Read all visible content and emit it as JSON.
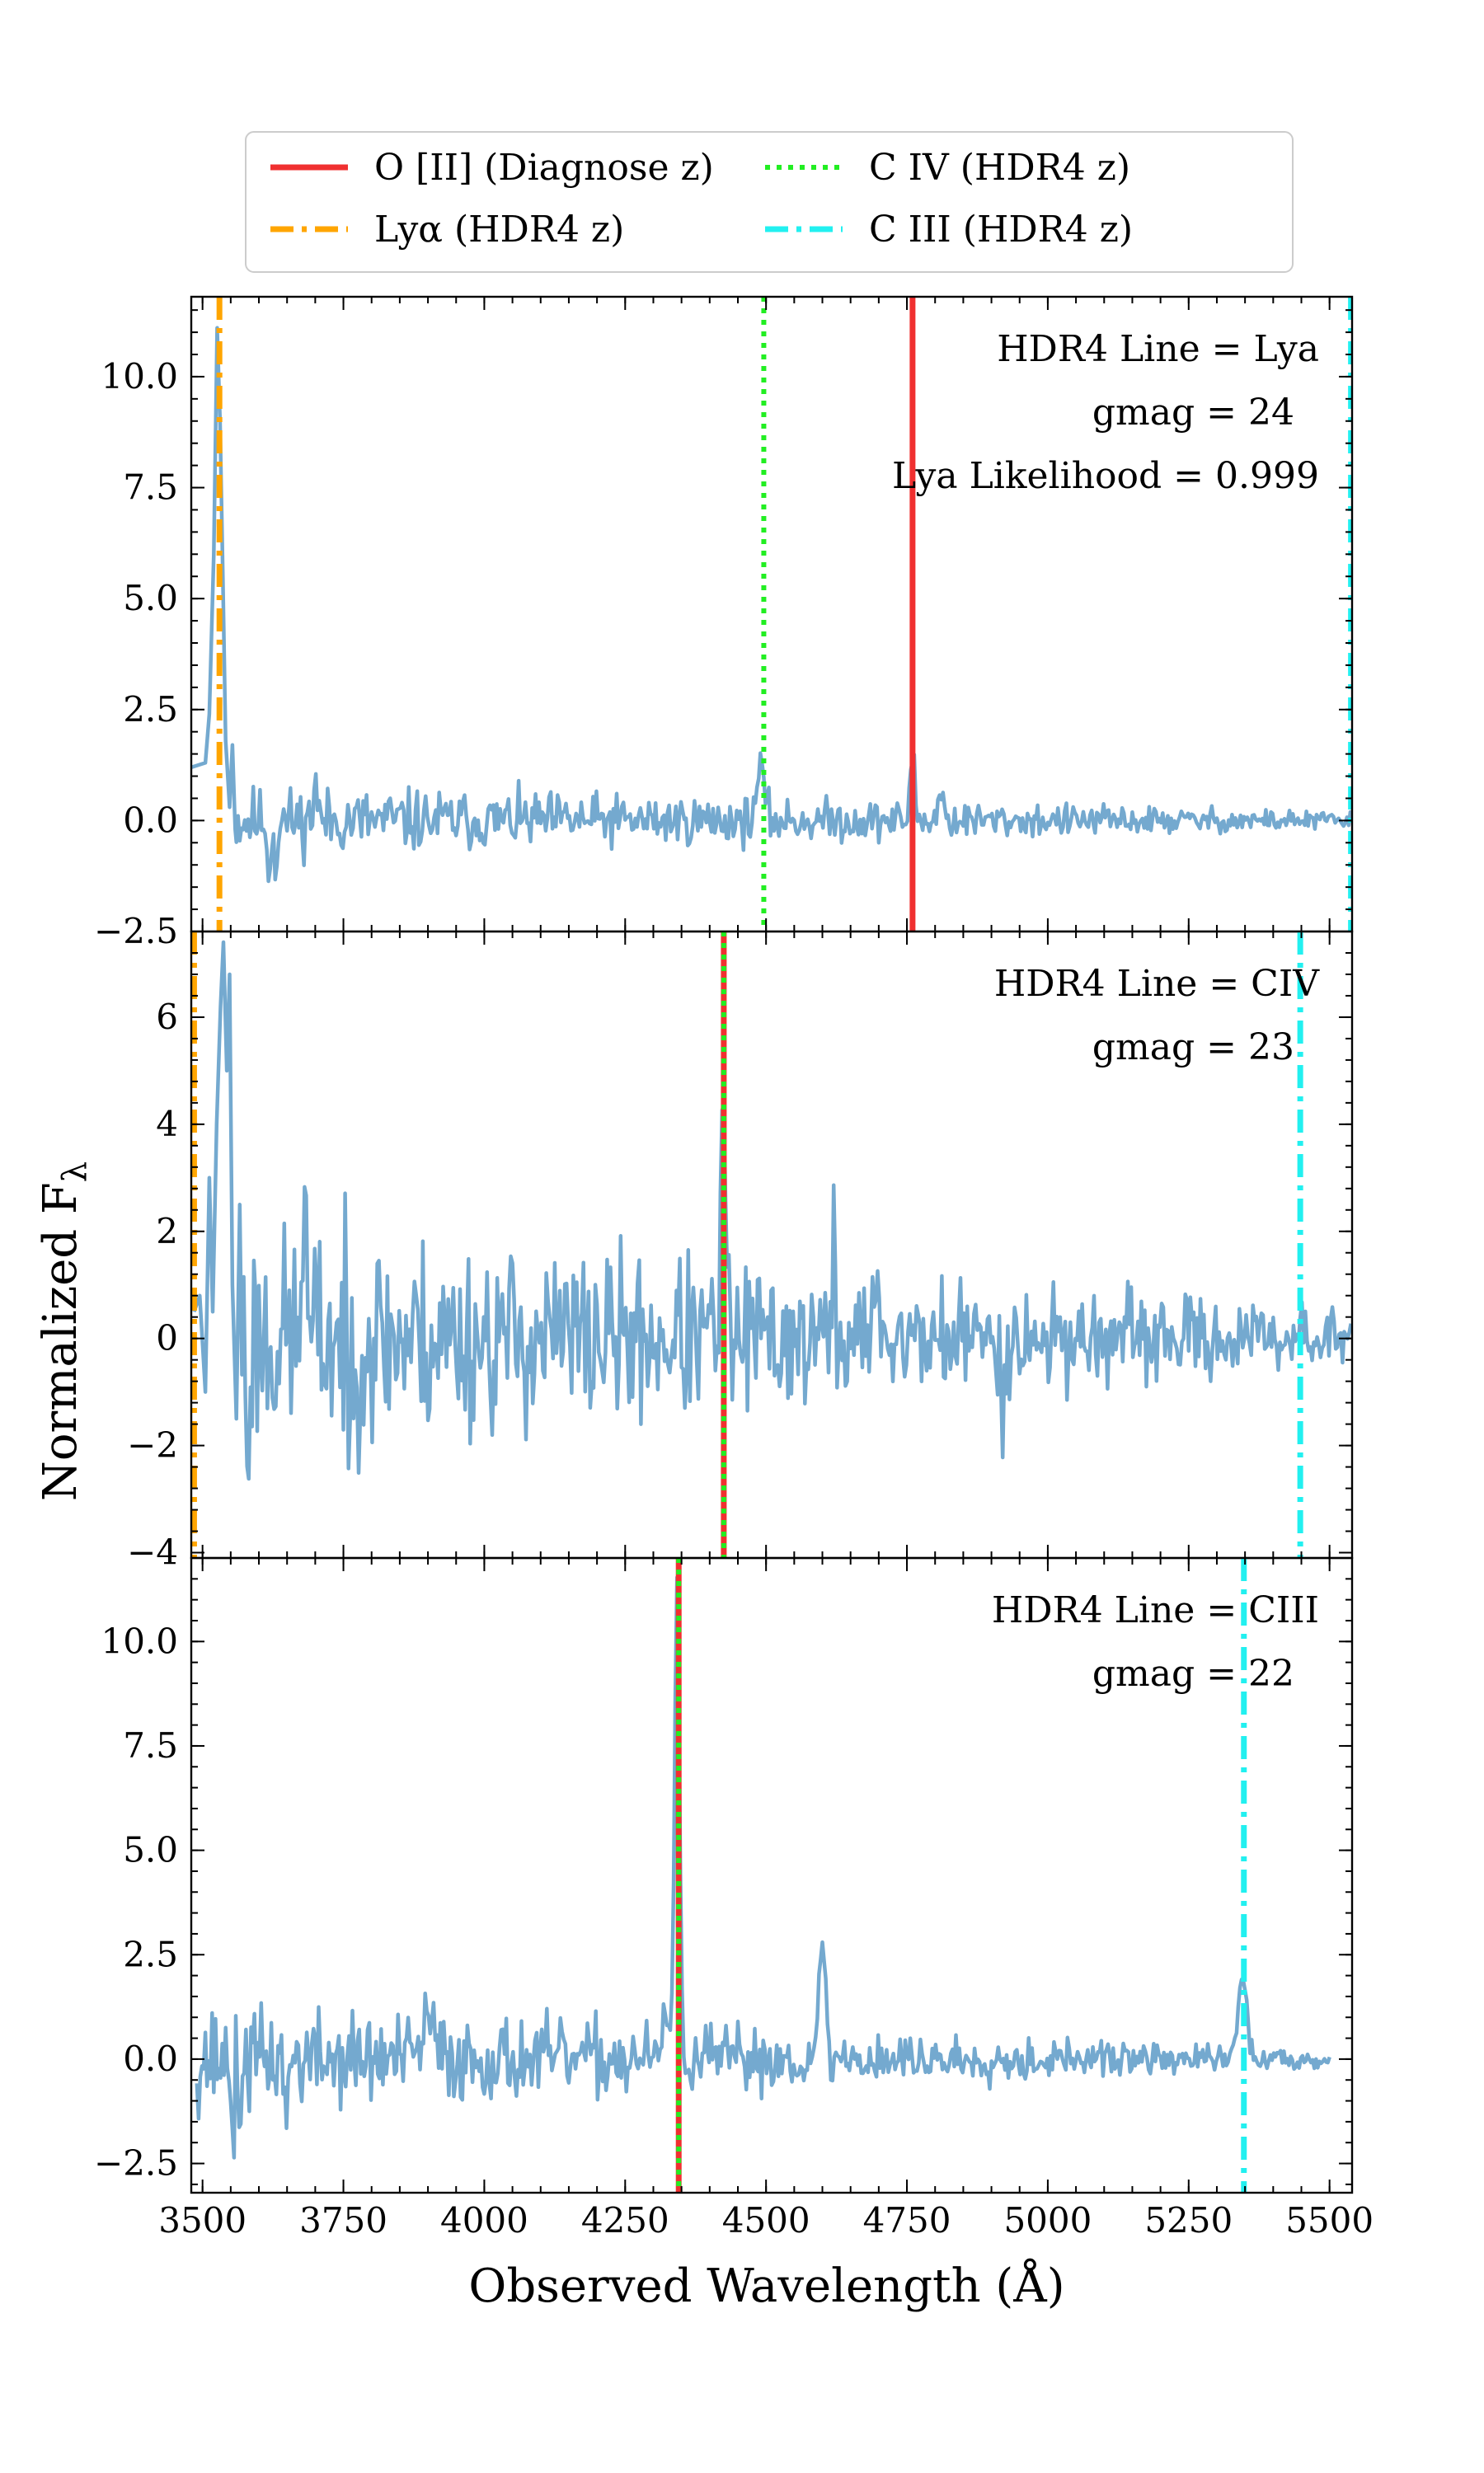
{
  "chart_data": {
    "type": "line",
    "xlabel": "Observed Wavelength (Å)",
    "ylabel": "Normalized F",
    "ylabel_sub": "λ",
    "xlim": [
      3480,
      5540
    ],
    "xticks": [
      3500,
      3750,
      4000,
      4250,
      4500,
      4750,
      5000,
      5250,
      5500
    ],
    "spectrum_color": "#74a9cf",
    "legend": {
      "placement": "top-center",
      "entries": [
        {
          "label": "O [II] (Diagnose z)",
          "color": "#f03030",
          "style": "solid"
        },
        {
          "label": "C IV (HDR4 z)",
          "color": "#22ee22",
          "style": "dotted"
        },
        {
          "label": "Lyα (HDR4 z)",
          "color": "#ffa500",
          "style": "dashdot"
        },
        {
          "label": "C III (HDR4 z)",
          "color": "#22f0f0",
          "style": "dashdot"
        }
      ]
    },
    "panels": [
      {
        "annotations": [
          "HDR4 Line = Lya",
          "gmag = 24",
          "Lya Likelihood = 0.999"
        ],
        "ylim": [
          -2.5,
          11.8
        ],
        "yticks": [
          -2.5,
          0.0,
          2.5,
          5.0,
          7.5,
          10.0
        ],
        "ytick_labels": [
          "−2.5",
          "0.0",
          "2.5",
          "5.0",
          "7.5",
          "10.0"
        ],
        "vlines": [
          {
            "x": 3530,
            "color": "#ffa500",
            "style": "dashdot"
          },
          {
            "x": 4496,
            "color": "#22ee22",
            "style": "dotted"
          },
          {
            "x": 4760,
            "color": "#f03030",
            "style": "solid"
          },
          {
            "x": 5538,
            "color": "#22f0f0",
            "style": "dashdot"
          }
        ],
        "spectrum": {
          "noise_start": 3560,
          "noise_end": 5540,
          "amp_start": 0.55,
          "amp_end": 0.15,
          "seed": 11,
          "pre": [
            [
              3480,
              1.2
            ],
            [
              3505,
              1.3
            ],
            [
              3512,
              2.4
            ],
            [
              3520,
              6.0
            ],
            [
              3526,
              11.1
            ],
            [
              3531,
              9.0
            ],
            [
              3536,
              5.5
            ],
            [
              3541,
              1.8
            ],
            [
              3548,
              0.3
            ],
            [
              3553,
              1.7
            ],
            [
              3558,
              -0.2
            ]
          ],
          "peaks": [
            [
              4490,
              1.1,
              7
            ],
            [
              4760,
              1.5,
              4
            ],
            [
              4810,
              0.6,
              5
            ],
            [
              3700,
              1.0,
              3
            ],
            [
              3618,
              -1.7,
              2
            ],
            [
              3630,
              -1.3,
              2
            ]
          ]
        }
      },
      {
        "annotations": [
          "HDR4 Line = CIV",
          "gmag = 23"
        ],
        "ylim": [
          -4.1,
          7.6
        ],
        "yticks": [
          -4,
          -2,
          0,
          2,
          4,
          6
        ],
        "ytick_labels": [
          "−4",
          "−2",
          "0",
          "2",
          "4",
          "6"
        ],
        "vlines": [
          {
            "x": 3485,
            "color": "#ffa500",
            "style": "dashdot"
          },
          {
            "x": 4425,
            "color": "#f03030",
            "style": "solid"
          },
          {
            "x": 4425,
            "color": "#22ee22",
            "style": "dotted"
          },
          {
            "x": 5448,
            "color": "#22f0f0",
            "style": "dashdot"
          }
        ],
        "spectrum": {
          "noise_start": 3570,
          "noise_end": 5540,
          "amp_start": 1.5,
          "amp_end": 0.35,
          "seed": 23,
          "pre": [
            [
              3485,
              0.5
            ],
            [
              3495,
              0.8
            ],
            [
              3505,
              -1.0
            ],
            [
              3512,
              3.0
            ],
            [
              3518,
              0.5
            ],
            [
              3525,
              4.0
            ],
            [
              3532,
              6.2
            ],
            [
              3537,
              7.4
            ],
            [
              3543,
              5.0
            ],
            [
              3548,
              6.8
            ],
            [
              3553,
              1.0
            ],
            [
              3560,
              -1.5
            ],
            [
              3566,
              2.5
            ]
          ],
          "peaks": [
            [
              4424,
              4.2,
              4
            ],
            [
              3540,
              -3.5,
              2
            ],
            [
              3580,
              -3.0,
              2
            ],
            [
              3680,
              3.2,
              3
            ],
            [
              3760,
              -2.8,
              2
            ],
            [
              4620,
              1.5,
              3
            ],
            [
              4700,
              1.4,
              3
            ],
            [
              4920,
              -2.1,
              2
            ],
            [
              5450,
              0.6,
              3
            ]
          ]
        }
      },
      {
        "annotations": [
          "HDR4 Line = CIII",
          "gmag = 22"
        ],
        "ylim": [
          -3.2,
          12.0
        ],
        "yticks": [
          -2.5,
          0.0,
          2.5,
          5.0,
          7.5,
          10.0
        ],
        "ytick_labels": [
          "−2.5",
          "0.0",
          "2.5",
          "5.0",
          "7.5",
          "10.0"
        ],
        "vlines": [
          {
            "x": 4345,
            "color": "#f03030",
            "style": "solid"
          },
          {
            "x": 4345,
            "color": "#22ee22",
            "style": "dotted"
          },
          {
            "x": 5348,
            "color": "#22f0f0",
            "style": "dashdot"
          }
        ],
        "spectrum": {
          "noise_start": 3490,
          "noise_end": 5500,
          "amp_start": 0.9,
          "amp_end": 0.15,
          "seed": 37,
          "pre": [],
          "peaks": [
            [
              4342,
              11.0,
              4
            ],
            [
              4600,
              3.0,
              5
            ],
            [
              5345,
              1.9,
              8
            ],
            [
              3900,
              0.9,
              10
            ],
            [
              4330,
              1.0,
              10
            ],
            [
              3555,
              -2.4,
              2
            ],
            [
              3565,
              -2.2,
              2
            ],
            [
              3650,
              -2.0,
              2
            ]
          ]
        }
      }
    ]
  }
}
